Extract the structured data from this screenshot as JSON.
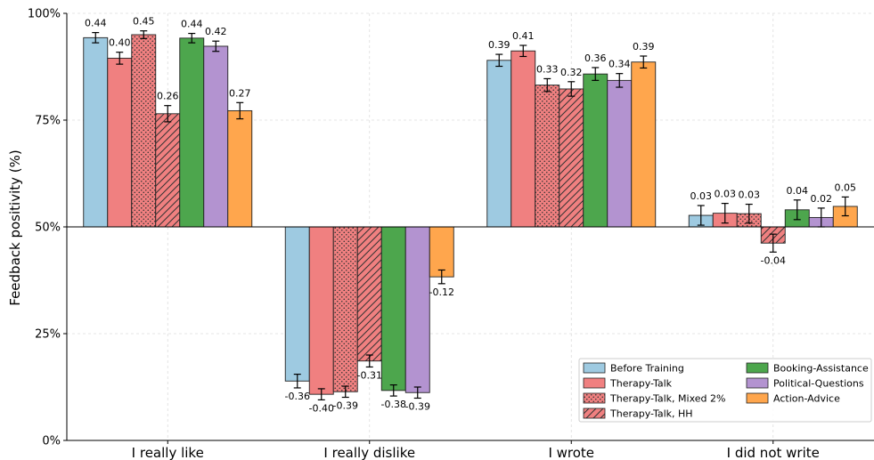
{
  "chart_data": {
    "type": "bar",
    "ylabel": "Feedback positivity (%)",
    "ylim": [
      0,
      100
    ],
    "yticks": [
      0,
      25,
      50,
      75,
      100
    ],
    "ytick_labels": [
      "0%",
      "25%",
      "50%",
      "75%",
      "100%"
    ],
    "baseline": 50,
    "grid": true,
    "legend_position": "bottom-right",
    "categories": [
      "I really like",
      "I really dislike",
      "I wrote",
      "I did not write"
    ],
    "series": [
      {
        "name": "Before Training",
        "color": "#9ecae1",
        "hatch": "none",
        "values": [
          94.3,
          13.9,
          89.0,
          52.7
        ],
        "errors": [
          1.2,
          1.6,
          1.4,
          2.3
        ],
        "labels": [
          "0.44",
          "-0.36",
          "0.39",
          "0.03"
        ]
      },
      {
        "name": "Therapy-Talk",
        "color": "#f08080",
        "hatch": "none",
        "values": [
          89.5,
          10.8,
          91.2,
          53.2
        ],
        "errors": [
          1.4,
          1.3,
          1.3,
          2.3
        ],
        "labels": [
          "0.40",
          "-0.40",
          "0.41",
          "0.03"
        ]
      },
      {
        "name": "Therapy-Talk, Mixed 2%",
        "color": "#f08080",
        "hatch": "dots",
        "values": [
          95.0,
          11.4,
          83.2,
          53.1
        ],
        "errors": [
          0.9,
          1.3,
          1.5,
          2.2
        ],
        "labels": [
          "0.45",
          "-0.39",
          "0.33",
          "0.03"
        ]
      },
      {
        "name": "Therapy-Talk, HH",
        "color": "#f08080",
        "hatch": "diag",
        "values": [
          76.5,
          18.6,
          82.3,
          46.2
        ],
        "errors": [
          1.9,
          1.4,
          1.7,
          2.1
        ],
        "labels": [
          "0.26",
          "-0.31",
          "0.32",
          "-0.04"
        ]
      },
      {
        "name": "Booking-Assistance",
        "color": "#4da64d",
        "hatch": "none",
        "values": [
          94.2,
          11.7,
          85.8,
          54.0
        ],
        "errors": [
          1.1,
          1.3,
          1.5,
          2.3
        ],
        "labels": [
          "0.44",
          "-0.38",
          "0.36",
          "0.04"
        ]
      },
      {
        "name": "Political-Questions",
        "color": "#b393d0",
        "hatch": "none",
        "values": [
          92.3,
          11.2,
          84.3,
          52.2
        ],
        "errors": [
          1.2,
          1.3,
          1.6,
          2.2
        ],
        "labels": [
          "0.42",
          "-0.39",
          "0.34",
          "0.02"
        ]
      },
      {
        "name": "Action-Advice",
        "color": "#ffa64d",
        "hatch": "none",
        "values": [
          77.2,
          38.3,
          88.6,
          54.8
        ],
        "errors": [
          1.9,
          1.6,
          1.4,
          2.2
        ],
        "labels": [
          "0.27",
          "-0.12",
          "0.39",
          "0.05"
        ]
      }
    ]
  }
}
